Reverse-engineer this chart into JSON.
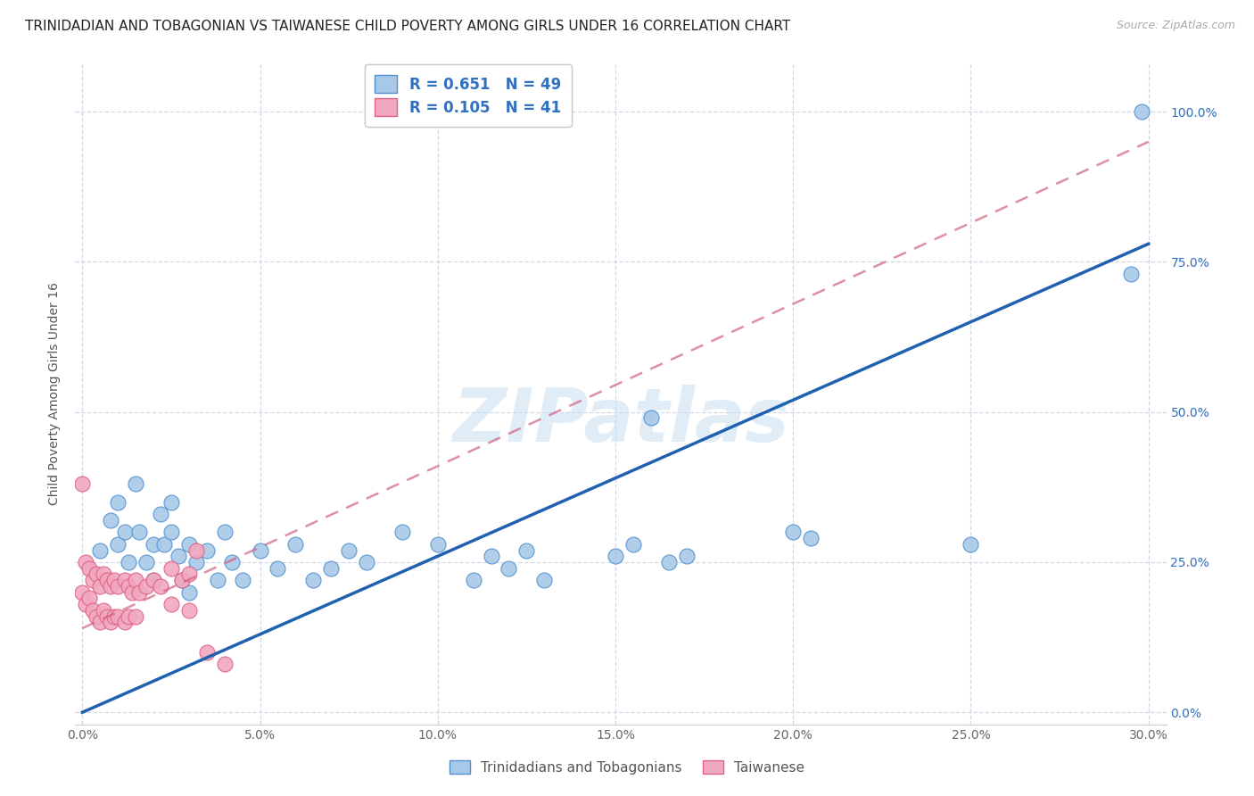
{
  "title": "TRINIDADIAN AND TOBAGONIAN VS TAIWANESE CHILD POVERTY AMONG GIRLS UNDER 16 CORRELATION CHART",
  "source": "Source: ZipAtlas.com",
  "ylabel": "Child Poverty Among Girls Under 16",
  "xlim": [
    -0.002,
    0.305
  ],
  "ylim": [
    -0.02,
    1.08
  ],
  "xticks": [
    0.0,
    0.05,
    0.1,
    0.15,
    0.2,
    0.25,
    0.3
  ],
  "yticks": [
    0.0,
    0.25,
    0.5,
    0.75,
    1.0
  ],
  "ytick_labels": [
    "0.0%",
    "25.0%",
    "50.0%",
    "75.0%",
    "100.0%"
  ],
  "xtick_labels": [
    "0.0%",
    "5.0%",
    "10.0%",
    "15.0%",
    "20.0%",
    "25.0%",
    "30.0%"
  ],
  "legend_R1": "R = 0.651",
  "legend_N1": "N = 49",
  "legend_R2": "R = 0.105",
  "legend_N2": "N = 41",
  "blue_color": "#a8c8e8",
  "pink_color": "#f0a8c0",
  "blue_edge_color": "#5090d0",
  "pink_edge_color": "#e06080",
  "blue_line_color": "#2060b0",
  "pink_line_color": "#d06080",
  "legend_text_color": "#3070c0",
  "watermark": "ZIPatlas",
  "blue_scatter_x": [
    0.005,
    0.008,
    0.01,
    0.01,
    0.012,
    0.013,
    0.015,
    0.016,
    0.018,
    0.02,
    0.02,
    0.022,
    0.023,
    0.025,
    0.025,
    0.027,
    0.028,
    0.03,
    0.03,
    0.032,
    0.035,
    0.038,
    0.04,
    0.042,
    0.045,
    0.05,
    0.055,
    0.06,
    0.065,
    0.07,
    0.075,
    0.08,
    0.09,
    0.1,
    0.11,
    0.115,
    0.12,
    0.125,
    0.13,
    0.15,
    0.155,
    0.16,
    0.165,
    0.17,
    0.2,
    0.205,
    0.25,
    0.295,
    0.298
  ],
  "blue_scatter_y": [
    0.27,
    0.32,
    0.35,
    0.28,
    0.3,
    0.25,
    0.38,
    0.3,
    0.25,
    0.28,
    0.22,
    0.33,
    0.28,
    0.3,
    0.35,
    0.26,
    0.22,
    0.28,
    0.2,
    0.25,
    0.27,
    0.22,
    0.3,
    0.25,
    0.22,
    0.27,
    0.24,
    0.28,
    0.22,
    0.24,
    0.27,
    0.25,
    0.3,
    0.28,
    0.22,
    0.26,
    0.24,
    0.27,
    0.22,
    0.26,
    0.28,
    0.49,
    0.25,
    0.26,
    0.3,
    0.29,
    0.28,
    0.73,
    1.0
  ],
  "pink_scatter_x": [
    0.0,
    0.0,
    0.001,
    0.001,
    0.002,
    0.002,
    0.003,
    0.003,
    0.004,
    0.004,
    0.005,
    0.005,
    0.006,
    0.006,
    0.007,
    0.007,
    0.008,
    0.008,
    0.009,
    0.009,
    0.01,
    0.01,
    0.012,
    0.012,
    0.013,
    0.013,
    0.014,
    0.015,
    0.015,
    0.016,
    0.018,
    0.02,
    0.022,
    0.025,
    0.025,
    0.028,
    0.03,
    0.03,
    0.032,
    0.035,
    0.04
  ],
  "pink_scatter_y": [
    0.38,
    0.2,
    0.25,
    0.18,
    0.24,
    0.19,
    0.22,
    0.17,
    0.23,
    0.16,
    0.21,
    0.15,
    0.23,
    0.17,
    0.22,
    0.16,
    0.21,
    0.15,
    0.22,
    0.16,
    0.21,
    0.16,
    0.22,
    0.15,
    0.21,
    0.16,
    0.2,
    0.22,
    0.16,
    0.2,
    0.21,
    0.22,
    0.21,
    0.24,
    0.18,
    0.22,
    0.23,
    0.17,
    0.27,
    0.1,
    0.08
  ],
  "blue_line_x": [
    0.0,
    0.3
  ],
  "blue_line_y": [
    0.0,
    0.78
  ],
  "pink_line_x": [
    0.0,
    0.3
  ],
  "pink_line_y": [
    0.14,
    0.95
  ],
  "grid_color": "#d0d8e8",
  "background_color": "#ffffff",
  "legend_fontsize": 12,
  "title_fontsize": 11,
  "axis_label_fontsize": 10,
  "tick_fontsize": 10
}
